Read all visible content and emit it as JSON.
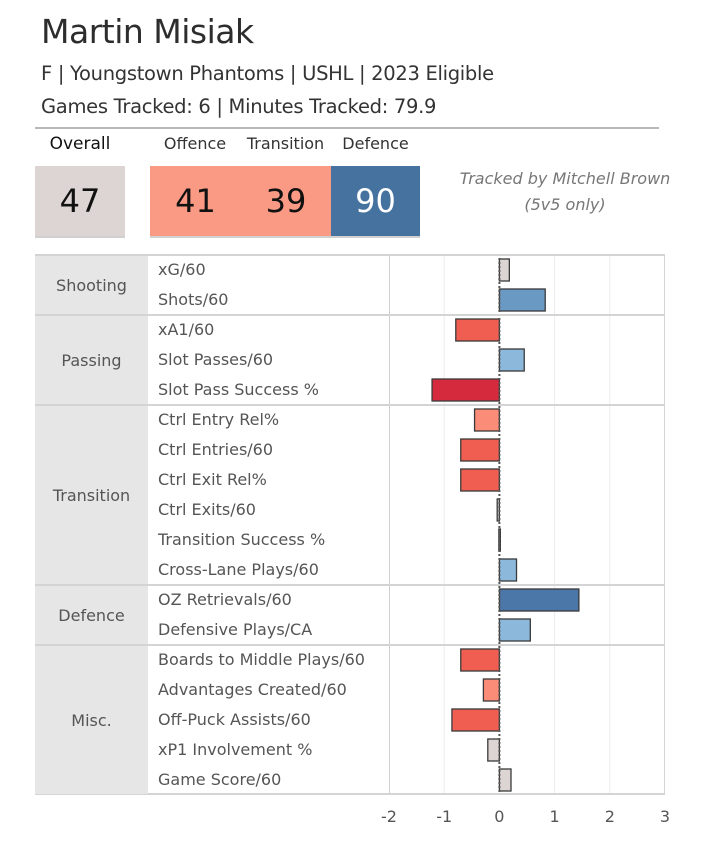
{
  "header": {
    "player_name": "Martin Misiak",
    "subtitle": "F | Youngstown Phantoms | USHL | 2023 Eligible",
    "tracking": "Games Tracked: 6 | Minutes Tracked: 79.9"
  },
  "scores": {
    "overall_label": "Overall",
    "overall_value": "47",
    "offence_label": "Offence",
    "offence_value": "41",
    "transition_label": "Transition",
    "transition_value": "39",
    "defence_label": "Defence",
    "defence_value": "90",
    "colors": {
      "overall": "#ddd5d3",
      "offence": "#fa9a84",
      "transition": "#fa9a84",
      "defence": "#45729f"
    }
  },
  "credit": {
    "line1": "Tracked by Mitchell Brown",
    "line2": "(5v5 only)"
  },
  "chart_data": {
    "type": "bar",
    "orientation": "horizontal",
    "xlim": [
      -2,
      3
    ],
    "xticks": [
      "-2",
      "-1",
      "0",
      "1",
      "2",
      "3"
    ],
    "grid": true,
    "sections": [
      {
        "name": "Shooting",
        "metrics": [
          {
            "label": "xG/60",
            "value": 0.18,
            "color": "#ddd5d3"
          },
          {
            "label": "Shots/60",
            "value": 0.83,
            "color": "#6a9ac4"
          }
        ]
      },
      {
        "name": "Passing",
        "metrics": [
          {
            "label": "xA1/60",
            "value": -0.79,
            "color": "#f05e52"
          },
          {
            "label": "Slot Passes/60",
            "value": 0.45,
            "color": "#8cb8dc"
          },
          {
            "label": "Slot Pass Success %",
            "value": -1.22,
            "color": "#d52a3d"
          }
        ]
      },
      {
        "name": "Transition",
        "metrics": [
          {
            "label": "Ctrl Entry Rel%",
            "value": -0.45,
            "color": "#fa8c78"
          },
          {
            "label": "Ctrl Entries/60",
            "value": -0.7,
            "color": "#f05e52"
          },
          {
            "label": "Ctrl Exit Rel%",
            "value": -0.7,
            "color": "#f05e52"
          },
          {
            "label": "Ctrl Exits/60",
            "value": -0.04,
            "color": "#ddd5d3"
          },
          {
            "label": "Transition Success %",
            "value": -0.01,
            "color": "#ddd5d3"
          },
          {
            "label": "Cross-Lane Plays/60",
            "value": 0.31,
            "color": "#8cb8dc"
          }
        ]
      },
      {
        "name": "Defence",
        "metrics": [
          {
            "label": "OZ Retrievals/60",
            "value": 1.44,
            "color": "#4a77a8"
          },
          {
            "label": "Defensive Plays/CA",
            "value": 0.56,
            "color": "#8cb8dc"
          }
        ]
      },
      {
        "name": "Misc.",
        "metrics": [
          {
            "label": "Boards to Middle Plays/60",
            "value": -0.7,
            "color": "#f05e52"
          },
          {
            "label": "Advantages Created/60",
            "value": -0.29,
            "color": "#fa8c78"
          },
          {
            "label": "Off-Puck Assists/60",
            "value": -0.86,
            "color": "#f05e52"
          },
          {
            "label": "xP1 Involvement %",
            "value": -0.21,
            "color": "#ddd5d3"
          },
          {
            "label": "Game Score/60",
            "value": 0.21,
            "color": "#ddd5d3"
          }
        ]
      }
    ]
  }
}
